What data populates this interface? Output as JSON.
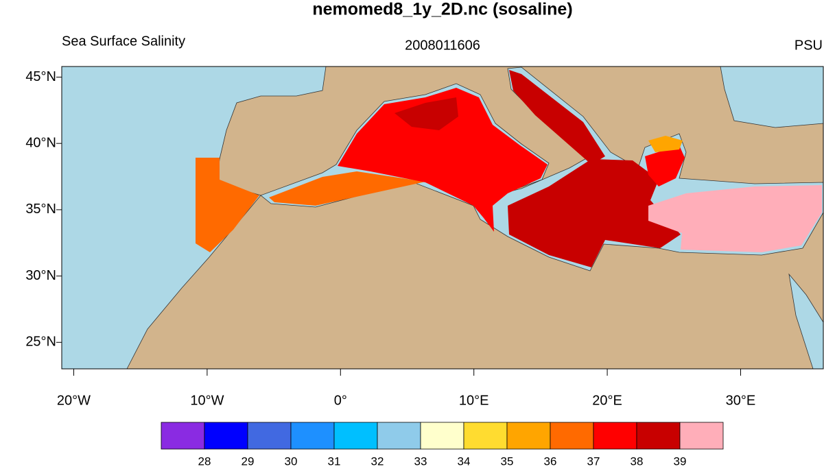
{
  "header": {
    "title": "nemomed8_1y_2D.nc (sosaline)",
    "left_string": "Sea Surface Salinity",
    "center_string": "2008011606",
    "right_string": "PSU"
  },
  "map": {
    "xlim": [
      -20.9,
      36.2
    ],
    "ylim": [
      23,
      45.8
    ],
    "xticks": [
      {
        "value": -20,
        "label": "20°W"
      },
      {
        "value": -10,
        "label": "10°W"
      },
      {
        "value": 0,
        "label": "0°"
      },
      {
        "value": 10,
        "label": "10°E"
      },
      {
        "value": 20,
        "label": "20°E"
      },
      {
        "value": 30,
        "label": "30°E"
      }
    ],
    "yticks": [
      {
        "value": 25,
        "label": "25°N"
      },
      {
        "value": 30,
        "label": "30°N"
      },
      {
        "value": 35,
        "label": "35°N"
      },
      {
        "value": 40,
        "label": "40°N"
      },
      {
        "value": 45,
        "label": "45°N"
      }
    ]
  },
  "colorbar": {
    "levels": [
      28,
      29,
      30,
      31,
      32,
      33,
      34,
      35,
      36,
      37,
      38,
      39
    ],
    "colors": [
      "#8a2be2",
      "#0000ff",
      "#4169e1",
      "#1e90ff",
      "#00bfff",
      "#8fcbea",
      "#ffffcc",
      "#ffdc30",
      "#ffa500",
      "#ff6a00",
      "#ff0000",
      "#c80000",
      "#ffaeb9"
    ]
  }
}
